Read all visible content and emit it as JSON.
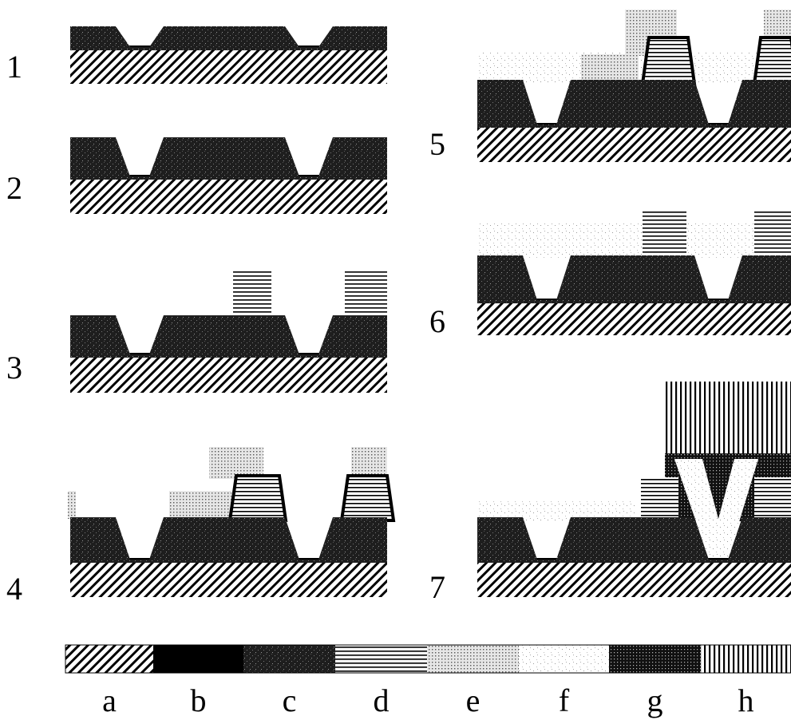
{
  "steps": [
    "1",
    "2",
    "3",
    "4",
    "5",
    "6",
    "7"
  ],
  "legend": [
    "a",
    "b",
    "c",
    "d",
    "e",
    "f",
    "g",
    "h"
  ]
}
